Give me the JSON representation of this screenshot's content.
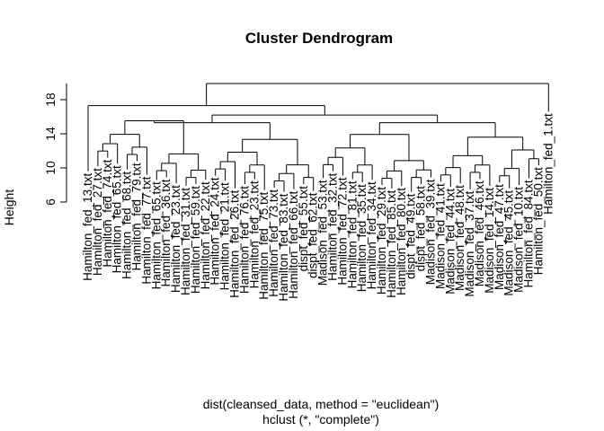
{
  "chart_data": {
    "type": "dendrogram",
    "title": "Cluster Dendrogram",
    "ylabel": "Height",
    "xlabel_line1": "dist(cleansed_data, method = \"euclidean\")",
    "xlabel_line2": "hclust (*, \"complete\")",
    "y_ticks": [
      6,
      10,
      14,
      18
    ],
    "ylim": [
      6,
      20
    ],
    "root_height": 19.9,
    "leaves": [
      {
        "label": "Hamilton_fed_13.txt",
        "h": 9.6
      },
      {
        "label": "Hamilton_fed_27.txt",
        "h": 10.2
      },
      {
        "label": "Hamilton_fed_74.txt",
        "h": 11.2
      },
      {
        "label": "Hamilton_fed_65.txt",
        "h": 10.5
      },
      {
        "label": "Hamilton_fed_68.txt",
        "h": 9.8
      },
      {
        "label": "Hamilton_fed_79.txt",
        "h": 10.8
      },
      {
        "label": "Hamilton_fed_77.txt",
        "h": 9.2
      },
      {
        "label": "Hamilton_fed_65.txt",
        "h": 8.6
      },
      {
        "label": "Hamilton_fed_36.txt",
        "h": 8.9
      },
      {
        "label": "Hamilton_fed_23.txt",
        "h": 8.2
      },
      {
        "label": "Hamilton_fed_31.txt",
        "h": 7.9
      },
      {
        "label": "Hamilton_fed_59.txt",
        "h": 8.1
      },
      {
        "label": "Hamilton_fed_22.txt",
        "h": 8.6
      },
      {
        "label": "Hamilton_fed_24.txt",
        "h": 9.1
      },
      {
        "label": "Hamilton_fed_21.txt",
        "h": 8.5
      },
      {
        "label": "Hamilton_fed_26.txt",
        "h": 7.6
      },
      {
        "label": "Hamilton_fed_76.txt",
        "h": 8.1
      },
      {
        "label": "Hamilton_fed_23.txt",
        "h": 8.7
      },
      {
        "label": "Hamilton_fed_75.txt",
        "h": 7.4
      },
      {
        "label": "Hamilton_fed_73.txt",
        "h": 7.7
      },
      {
        "label": "Hamilton_fed_83.txt",
        "h": 7.2
      },
      {
        "label": "Hamilton_fed_66.txt",
        "h": 7.5
      },
      {
        "label": "dispt_fed_55.txt",
        "h": 8.1
      },
      {
        "label": "dispt_fed_62.txt",
        "h": 7.3
      },
      {
        "label": "Madison_fed_53.txt",
        "h": 8.8
      },
      {
        "label": "Hamilton_fed_32.txt",
        "h": 9.6
      },
      {
        "label": "Hamilton_fed_72.txt",
        "h": 9.1
      },
      {
        "label": "Hamilton_fed_81.txt",
        "h": 8.7
      },
      {
        "label": "Hamilton_fed_35.txt",
        "h": 8.3
      },
      {
        "label": "Hamilton_fed_34.txt",
        "h": 8.6
      },
      {
        "label": "Hamilton_fed_29.txt",
        "h": 8.0
      },
      {
        "label": "Hamilton_fed_85.txt",
        "h": 7.6
      },
      {
        "label": "Hamilton_fed_80.txt",
        "h": 7.9
      },
      {
        "label": "dispt_fed_49.txt",
        "h": 7.2
      },
      {
        "label": "dispt_fed_58.txt",
        "h": 8.1
      },
      {
        "label": "Madison_fed_39.txt",
        "h": 8.9
      },
      {
        "label": "Madison_fed_41.txt",
        "h": 8.4
      },
      {
        "label": "Madison_fed_44.txt",
        "h": 7.8
      },
      {
        "label": "Madison_fed_48.txt",
        "h": 8.2
      },
      {
        "label": "Madison_fed_37.txt",
        "h": 7.5
      },
      {
        "label": "Madison_fed_46.txt",
        "h": 8.7
      },
      {
        "label": "Madison_fed_14.txt",
        "h": 7.9
      },
      {
        "label": "Madison_fed_47.txt",
        "h": 8.3
      },
      {
        "label": "Madison_fed_45.txt",
        "h": 7.6
      },
      {
        "label": "Madison_fed_10.txt",
        "h": 8.0
      },
      {
        "label": "Hamilton_fed_84.txt",
        "h": 8.8
      },
      {
        "label": "Hamilton_fed_50.txt",
        "h": 10.3
      },
      {
        "label": "Hamilton_fed_1.txt",
        "h": 16.6
      }
    ]
  }
}
